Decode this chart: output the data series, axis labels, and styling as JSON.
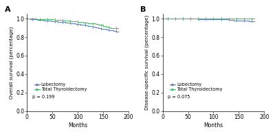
{
  "panel_A": {
    "title": "A",
    "ylabel": "Overall survival (percentage)",
    "xlabel": "Months",
    "pvalue": "p = 0.199",
    "xlim": [
      0,
      200
    ],
    "ylim": [
      0,
      1.05
    ],
    "yticks": [
      0,
      0.2,
      0.4,
      0.6,
      0.8,
      1.0
    ],
    "xticks": [
      0,
      50,
      100,
      150,
      200
    ],
    "lobectomy_x": [
      0,
      2,
      4,
      6,
      8,
      10,
      12,
      14,
      16,
      18,
      20,
      22,
      24,
      26,
      28,
      30,
      32,
      34,
      36,
      38,
      40,
      42,
      44,
      46,
      48,
      50,
      55,
      60,
      65,
      70,
      75,
      80,
      85,
      90,
      95,
      100,
      105,
      110,
      115,
      120,
      125,
      130,
      135,
      140,
      145,
      150,
      155,
      160,
      165,
      170,
      175,
      180
    ],
    "lobectomy_y": [
      1.0,
      0.998,
      0.997,
      0.996,
      0.995,
      0.994,
      0.993,
      0.992,
      0.991,
      0.99,
      0.989,
      0.988,
      0.987,
      0.986,
      0.985,
      0.984,
      0.983,
      0.982,
      0.981,
      0.98,
      0.979,
      0.977,
      0.976,
      0.975,
      0.974,
      0.972,
      0.969,
      0.966,
      0.963,
      0.96,
      0.957,
      0.953,
      0.95,
      0.947,
      0.944,
      0.94,
      0.936,
      0.932,
      0.928,
      0.922,
      0.916,
      0.91,
      0.904,
      0.898,
      0.892,
      0.888,
      0.884,
      0.878,
      0.873,
      0.868,
      0.863,
      0.86
    ],
    "total_x": [
      0,
      2,
      4,
      6,
      8,
      10,
      12,
      14,
      16,
      18,
      20,
      22,
      24,
      26,
      28,
      30,
      32,
      34,
      36,
      38,
      40,
      42,
      44,
      46,
      48,
      50,
      55,
      60,
      65,
      70,
      75,
      80,
      85,
      90,
      95,
      100,
      105,
      110,
      115,
      120,
      125,
      130,
      135,
      140,
      145,
      150,
      155,
      160,
      165,
      170,
      175,
      180
    ],
    "total_y": [
      1.0,
      0.9995,
      0.999,
      0.9987,
      0.9984,
      0.998,
      0.9977,
      0.9974,
      0.997,
      0.9967,
      0.9964,
      0.996,
      0.9956,
      0.9952,
      0.9948,
      0.9944,
      0.994,
      0.9936,
      0.9932,
      0.9928,
      0.9924,
      0.992,
      0.9915,
      0.991,
      0.9905,
      0.99,
      0.988,
      0.986,
      0.984,
      0.982,
      0.98,
      0.977,
      0.974,
      0.972,
      0.969,
      0.966,
      0.963,
      0.958,
      0.954,
      0.95,
      0.947,
      0.945,
      0.94,
      0.936,
      0.932,
      0.918,
      0.91,
      0.905,
      0.9,
      0.898,
      0.896,
      0.895
    ],
    "lobectomy_color": "#6080c0",
    "total_color": "#50b870",
    "legend_labels": [
      "Lobectomy",
      "Total Thyroidectomy"
    ],
    "censor_ticks_lob": [
      10,
      25,
      40,
      55,
      70,
      85,
      100,
      115,
      130,
      145,
      160,
      175
    ],
    "censor_ticks_tot": [
      10,
      25,
      40,
      55,
      70,
      85,
      100,
      115,
      130,
      145,
      160,
      175
    ]
  },
  "panel_B": {
    "title": "B",
    "ylabel": "Disease-specific survival (percentage)",
    "xlabel": "Months",
    "pvalue": "p = 0.075",
    "xlim": [
      0,
      200
    ],
    "ylim": [
      0,
      1.05
    ],
    "yticks": [
      0,
      0.2,
      0.4,
      0.6,
      0.8,
      1.0
    ],
    "xticks": [
      0,
      50,
      100,
      150,
      200
    ],
    "lobectomy_x": [
      0,
      5,
      10,
      15,
      20,
      25,
      30,
      35,
      40,
      45,
      50,
      60,
      70,
      80,
      90,
      100,
      110,
      120,
      130,
      140,
      150,
      160,
      170,
      180
    ],
    "lobectomy_y": [
      1.0,
      1.0,
      1.0,
      1.0,
      0.9995,
      0.999,
      0.999,
      0.9985,
      0.998,
      0.998,
      0.9975,
      0.997,
      0.9965,
      0.996,
      0.9955,
      0.995,
      0.993,
      0.991,
      0.988,
      0.982,
      0.978,
      0.975,
      0.972,
      0.97
    ],
    "total_x": [
      0,
      5,
      10,
      15,
      20,
      25,
      30,
      35,
      40,
      45,
      50,
      60,
      70,
      80,
      90,
      100,
      110,
      120,
      130,
      140,
      150,
      160,
      170,
      180
    ],
    "total_y": [
      1.0,
      1.0,
      1.0,
      1.0,
      1.0,
      1.0,
      1.0,
      1.0,
      1.0,
      1.0,
      1.0,
      1.0,
      1.0,
      1.0,
      1.0,
      1.0,
      1.0,
      1.0,
      0.9995,
      0.9992,
      0.999,
      0.9988,
      0.9986,
      0.9985
    ],
    "lobectomy_color": "#6080c0",
    "total_color": "#50b870",
    "legend_labels": [
      "Lobectomy",
      "Total Thyroidectomy"
    ],
    "censor_ticks_lob": [
      10,
      25,
      40,
      55,
      70,
      85,
      100,
      115,
      130,
      145,
      160,
      175
    ],
    "censor_ticks_tot": [
      10,
      25,
      40,
      55,
      70,
      85,
      100,
      115,
      130,
      145,
      160,
      175
    ]
  },
  "figure_bg": "#ffffff",
  "font_size": 5.5
}
